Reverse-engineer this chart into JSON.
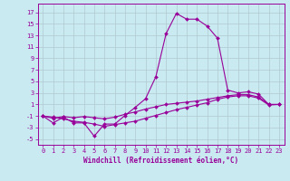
{
  "background_color": "#c8eaf0",
  "grid_color": "#b0c8d0",
  "line_color": "#990099",
  "x_ticks": [
    0,
    1,
    2,
    3,
    4,
    5,
    6,
    7,
    8,
    9,
    10,
    11,
    12,
    13,
    14,
    15,
    16,
    17,
    18,
    19,
    20,
    21,
    22,
    23
  ],
  "y_ticks": [
    -5,
    -3,
    -1,
    1,
    3,
    5,
    7,
    9,
    11,
    13,
    15,
    17
  ],
  "xlabel": "Windchill (Refroidissement éolien,°C)",
  "ylim": [
    -6,
    18.5
  ],
  "xlim": [
    -0.5,
    23.5
  ],
  "line1_y": [
    -1.0,
    -2.2,
    -1.2,
    -2.2,
    -2.2,
    -4.5,
    -2.4,
    -2.4,
    -0.9,
    0.5,
    2.0,
    5.8,
    13.3,
    16.8,
    15.8,
    15.8,
    14.6,
    12.5,
    3.5,
    3.0,
    3.2,
    2.8,
    1.0,
    1.0
  ],
  "line2_y": [
    -1.0,
    -1.4,
    -1.1,
    -1.3,
    -1.1,
    -1.3,
    -1.5,
    -1.2,
    -0.7,
    -0.3,
    0.2,
    0.6,
    1.0,
    1.2,
    1.4,
    1.6,
    1.9,
    2.2,
    2.5,
    2.7,
    2.7,
    2.3,
    1.0,
    1.0
  ],
  "line3_y": [
    -1.0,
    -1.2,
    -1.5,
    -1.9,
    -2.1,
    -2.4,
    -2.8,
    -2.5,
    -2.2,
    -1.9,
    -1.4,
    -0.9,
    -0.4,
    0.1,
    0.5,
    0.9,
    1.3,
    1.9,
    2.3,
    2.5,
    2.5,
    2.1,
    0.9,
    1.0
  ]
}
